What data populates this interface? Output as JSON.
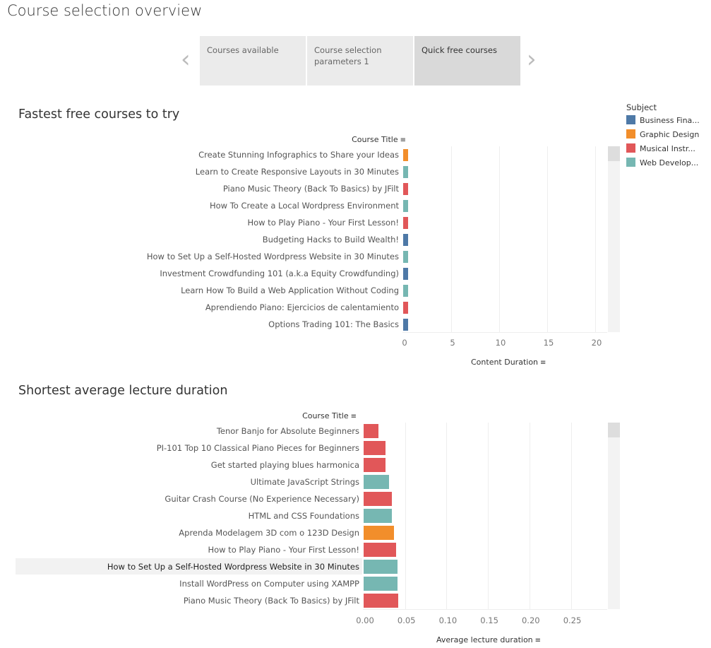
{
  "page_title": "Course selection overview",
  "carousel": {
    "tabs": [
      "Courses available",
      "Course selection parameters 1",
      "Quick free courses"
    ],
    "active": 2
  },
  "legend": {
    "title": "Subject",
    "items": [
      {
        "label": "Business Fina...",
        "color": "#4e79a7"
      },
      {
        "label": "Graphic Design",
        "color": "#f28e2b"
      },
      {
        "label": "Musical Instr...",
        "color": "#e15759"
      },
      {
        "label": "Web Develop...",
        "color": "#76b7b2"
      }
    ]
  },
  "chart_data": [
    {
      "type": "bar",
      "orientation": "horizontal",
      "title": "Fastest free courses to try",
      "ylabel": "Course Title",
      "xlabel": "Content Duration",
      "xlim": [
        0,
        21.5
      ],
      "ticks": [
        "0",
        "5",
        "10",
        "15",
        "20"
      ],
      "tick_values": [
        0,
        5,
        10,
        15,
        20
      ],
      "grid": true,
      "rows": [
        {
          "label": "Create Stunning Infographics to Share your Ideas",
          "value": 0.5,
          "subject": 1
        },
        {
          "label": "Learn to Create Responsive Layouts in 30 Minutes",
          "value": 0.5,
          "subject": 3
        },
        {
          "label": "Piano Music Theory (Back To Basics) by JFilt",
          "value": 0.5,
          "subject": 2
        },
        {
          "label": "How To Create a Local Wordpress Environment",
          "value": 0.5,
          "subject": 3
        },
        {
          "label": "How to Play Piano - Your First Lesson!",
          "value": 0.5,
          "subject": 2
        },
        {
          "label": "Budgeting Hacks to Build Wealth!",
          "value": 0.5,
          "subject": 0
        },
        {
          "label": "How to Set Up a Self-Hosted Wordpress Website in 30 Minutes",
          "value": 0.5,
          "subject": 3
        },
        {
          "label": "Investment Crowdfunding 101 (a.k.a Equity Crowdfunding)",
          "value": 0.5,
          "subject": 0
        },
        {
          "label": "Learn How To Build a Web Application Without Coding",
          "value": 0.5,
          "subject": 3
        },
        {
          "label": "Aprendiendo Piano: Ejercicios de calentamiento",
          "value": 0.5,
          "subject": 2
        },
        {
          "label": "Options Trading 101: The Basics",
          "value": 0.5,
          "subject": 0
        }
      ]
    },
    {
      "type": "bar",
      "orientation": "horizontal",
      "title": "Shortest average lecture duration",
      "ylabel": "Course Title",
      "xlabel": "Average lecture duration",
      "xlim": [
        0,
        0.29
      ],
      "ticks": [
        "0.00",
        "0.05",
        "0.10",
        "0.15",
        "0.20",
        "0.25"
      ],
      "tick_values": [
        0,
        0.05,
        0.1,
        0.15,
        0.2,
        0.25
      ],
      "grid": true,
      "rows": [
        {
          "label": "Tenor Banjo for Absolute Beginners",
          "value": 0.018,
          "subject": 2
        },
        {
          "label": "PI-101 Top 10 Classical Piano Pieces for Beginners",
          "value": 0.026,
          "subject": 2
        },
        {
          "label": "Get started playing blues harmonica",
          "value": 0.026,
          "subject": 2
        },
        {
          "label": "Ultimate JavaScript Strings",
          "value": 0.031,
          "subject": 3
        },
        {
          "label": "Guitar Crash Course (No Experience Necessary)",
          "value": 0.034,
          "subject": 2
        },
        {
          "label": "HTML and CSS Foundations",
          "value": 0.034,
          "subject": 3
        },
        {
          "label": "Aprenda Modelagem 3D com o 123D Design",
          "value": 0.037,
          "subject": 1
        },
        {
          "label": "How to Play Piano - Your First Lesson!",
          "value": 0.039,
          "subject": 2
        },
        {
          "label": "How to Set Up a Self-Hosted Wordpress Website in 30 Minutes",
          "value": 0.041,
          "subject": 3,
          "highlighted": true
        },
        {
          "label": "Install WordPress on Computer using XAMPP",
          "value": 0.041,
          "subject": 3
        },
        {
          "label": "Piano Music Theory (Back To Basics) by JFilt",
          "value": 0.042,
          "subject": 2
        }
      ]
    }
  ]
}
